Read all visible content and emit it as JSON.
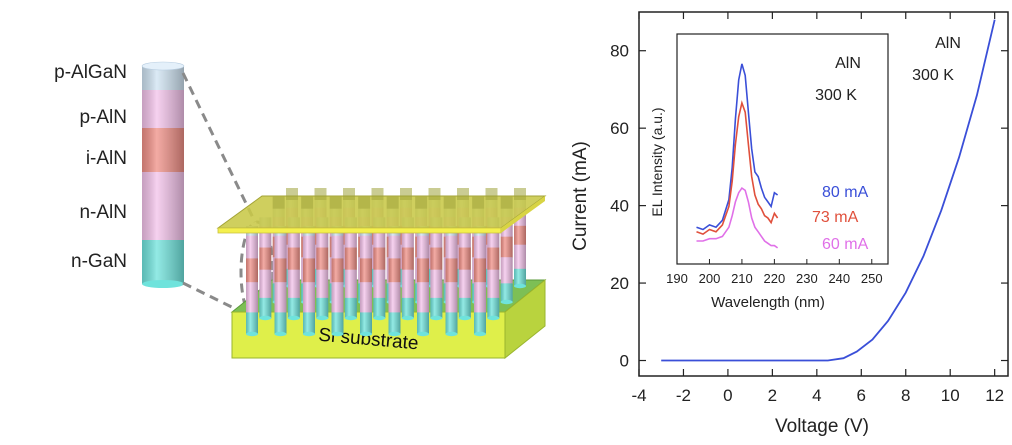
{
  "schematic": {
    "layer_labels": [
      "p-AlGaN",
      "p-AlN",
      "i-AlN",
      "n-AlN",
      "n-GaN"
    ],
    "substrate_label": "Si substrate",
    "layer_colors": [
      "#cfe3f2",
      "#f3c2ea",
      "#ef8f86",
      "#f3c2ea",
      "#6fe3dc"
    ]
  },
  "chart_data": [
    {
      "type": "line",
      "title": "",
      "xlabel": "Voltage (V)",
      "ylabel": "Current (mA)",
      "xlim": [
        -4,
        12.6
      ],
      "ylim": [
        -4,
        90
      ],
      "xticks": [
        -4,
        -2,
        0,
        2,
        4,
        6,
        8,
        10,
        12
      ],
      "yticks": [
        0,
        20,
        40,
        60,
        80
      ],
      "grid": false,
      "annotation": [
        "AlN",
        "300 K"
      ],
      "series": [
        {
          "color": "#3a4fd8",
          "x": [
            -3,
            0,
            4.5,
            5.2,
            5.8,
            6.5,
            7.2,
            8,
            8.8,
            9.6,
            10.4,
            11.2,
            12
          ],
          "y": [
            0,
            0,
            0,
            0.6,
            2.3,
            5.4,
            10.2,
            17.5,
            27,
            38.8,
            52.5,
            68.5,
            88
          ]
        }
      ]
    },
    {
      "type": "line",
      "title": "",
      "xlabel": "Wavelength (nm)",
      "ylabel": "EL Intensity (a.u.)",
      "xlim": [
        190,
        255
      ],
      "ylim": [
        0,
        1
      ],
      "xticks": [
        190,
        200,
        210,
        220,
        230,
        240,
        250
      ],
      "yticks": [],
      "grid": false,
      "annotation": [
        "AlN",
        "300 K"
      ],
      "legend": "right",
      "series": [
        {
          "name": "80 mA",
          "color": "#3a4fd8",
          "x": [
            196,
            198,
            200,
            202,
            204,
            206,
            207,
            208,
            209,
            210,
            211,
            212,
            213,
            214,
            215,
            216,
            217,
            218,
            219,
            220,
            221
          ],
          "y": [
            0.16,
            0.15,
            0.17,
            0.16,
            0.19,
            0.28,
            0.42,
            0.63,
            0.8,
            0.87,
            0.82,
            0.66,
            0.5,
            0.4,
            0.38,
            0.33,
            0.29,
            0.27,
            0.25,
            0.31,
            0.3
          ]
        },
        {
          "name": "73 mA",
          "color": "#e0503c",
          "x": [
            196,
            198,
            200,
            202,
            204,
            206,
            207,
            208,
            209,
            210,
            211,
            212,
            213,
            214,
            215,
            216,
            217,
            218,
            219,
            220,
            221
          ],
          "y": [
            0.14,
            0.13,
            0.15,
            0.14,
            0.17,
            0.25,
            0.36,
            0.52,
            0.64,
            0.7,
            0.66,
            0.52,
            0.38,
            0.3,
            0.26,
            0.24,
            0.21,
            0.2,
            0.18,
            0.22,
            0.2
          ]
        },
        {
          "name": "60 mA",
          "color": "#e070e8",
          "x": [
            196,
            198,
            200,
            202,
            204,
            206,
            207,
            208,
            209,
            210,
            211,
            212,
            213,
            214,
            215,
            216,
            217,
            218,
            219,
            220,
            221
          ],
          "y": [
            0.1,
            0.1,
            0.11,
            0.11,
            0.12,
            0.16,
            0.21,
            0.27,
            0.31,
            0.33,
            0.32,
            0.27,
            0.2,
            0.16,
            0.14,
            0.12,
            0.1,
            0.09,
            0.08,
            0.08,
            0.07
          ]
        }
      ]
    }
  ]
}
